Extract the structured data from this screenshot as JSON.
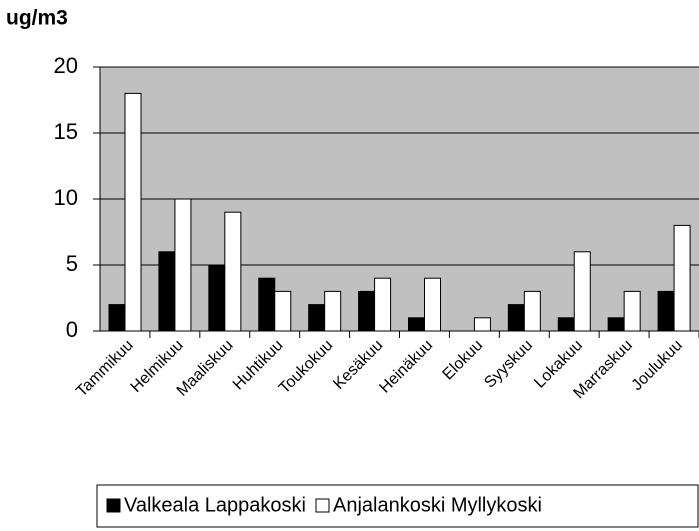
{
  "chart_data": {
    "type": "bar",
    "y_label": "ug/m3",
    "categories": [
      "Tammikuu",
      "Helmikuu",
      "Maaliskuu",
      "Huhtikuu",
      "Toukokuu",
      "Kesäkuu",
      "Heinäkuu",
      "Elokuu",
      "Syyskuu",
      "Lokakuu",
      "Marraskuu",
      "Joulukuu"
    ],
    "series": [
      {
        "name": "Valkeala Lappakoski",
        "color": "#000000",
        "values": [
          2,
          6,
          5,
          4,
          2,
          3,
          1,
          0,
          2,
          1,
          1,
          3
        ]
      },
      {
        "name": "Anjalankoski Myllykoski",
        "color": "#ffffff",
        "values": [
          18,
          10,
          9,
          3,
          3,
          4,
          4,
          1,
          3,
          6,
          3,
          8
        ]
      }
    ],
    "ylim": [
      0,
      20
    ],
    "yticks": [
      0,
      5,
      10,
      15,
      20
    ],
    "grid": true,
    "legend": "bottom"
  }
}
